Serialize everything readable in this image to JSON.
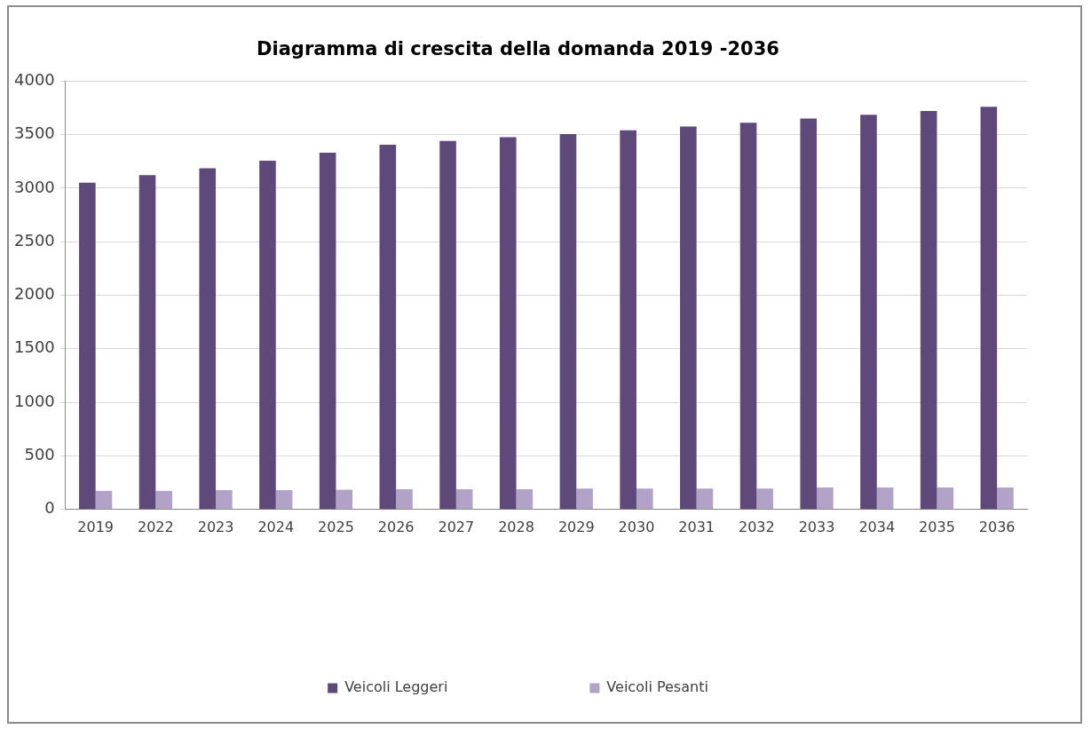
{
  "chart_data": {
    "type": "bar",
    "title": "Diagramma di crescita della domanda 2019 -2036",
    "categories": [
      "2019",
      "2022",
      "2023",
      "2024",
      "2025",
      "2026",
      "2027",
      "2028",
      "2029",
      "2030",
      "2031",
      "2032",
      "2033",
      "2034",
      "2035",
      "2036"
    ],
    "series": [
      {
        "name": "Veicoli Leggeri",
        "color": "#5f497a",
        "values": [
          3050,
          3120,
          3185,
          3255,
          3330,
          3405,
          3440,
          3475,
          3505,
          3540,
          3575,
          3610,
          3650,
          3685,
          3720,
          3760
        ]
      },
      {
        "name": "Veicoli Pesanti",
        "color": "#b3a2c7",
        "values": [
          175,
          175,
          180,
          180,
          185,
          190,
          190,
          190,
          195,
          195,
          195,
          195,
          205,
          205,
          205,
          205
        ]
      }
    ],
    "ylim": [
      0,
      4000
    ],
    "yticks": [
      0,
      500,
      1000,
      1500,
      2000,
      2500,
      3000,
      3500,
      4000
    ],
    "grid": "y",
    "legend": "bottom"
  }
}
